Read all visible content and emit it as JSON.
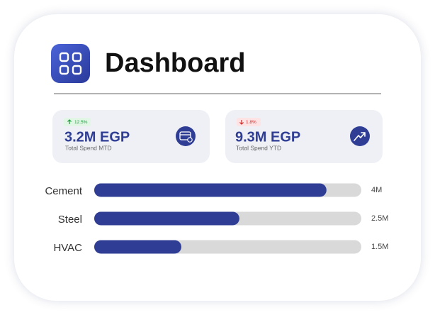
{
  "header": {
    "title": "Dashboard"
  },
  "kpis": [
    {
      "change": "12.5%",
      "direction": "up",
      "value": "3.2M EGP",
      "label": "Total Spend MTD"
    },
    {
      "change": "1.8%",
      "direction": "down",
      "value": "9.3M EGP",
      "label": "Total Spend YTD"
    }
  ],
  "chart_data": {
    "type": "bar",
    "orientation": "horizontal",
    "categories": [
      "Cement",
      "Steel",
      "HVAC"
    ],
    "values": [
      4,
      2.5,
      1.5
    ],
    "value_labels": [
      "4M",
      "2.5M",
      "1.5M"
    ],
    "xlim": [
      0,
      4.6
    ],
    "color": "#2f3e94"
  }
}
